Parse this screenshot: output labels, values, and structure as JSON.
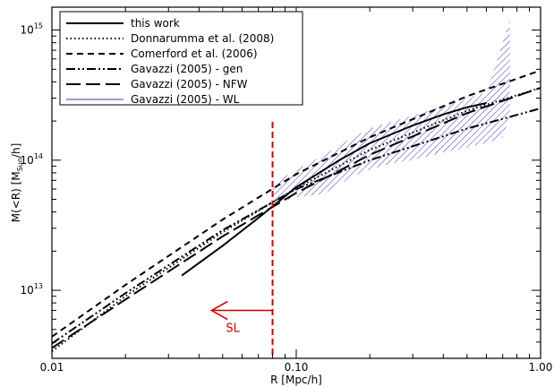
{
  "chart_data": {
    "type": "line",
    "xlabel": "R [Mpc/h]",
    "ylabel_prefix": "M(<R) [M",
    "ylabel_sub": "Sun",
    "ylabel_suffix": "/h]",
    "xscale": "log",
    "yscale": "log",
    "xlim": [
      0.01,
      1.0
    ],
    "ylim": [
      3000000000000.0,
      1500000000000000.0
    ],
    "x_ticks": [
      {
        "value": 0.01,
        "label": "0.01"
      },
      {
        "value": 0.1,
        "label": "0.10"
      },
      {
        "value": 1.0,
        "label": "1.00"
      }
    ],
    "y_ticks": [
      {
        "value": 10000000000000.0,
        "base": "10",
        "exp": "13"
      },
      {
        "value": 100000000000000.0,
        "base": "10",
        "exp": "14"
      },
      {
        "value": 1000000000000000.0,
        "base": "10",
        "exp": "15"
      }
    ],
    "legend_position": "top-left",
    "series": [
      {
        "name": "this work",
        "dash": "solid",
        "color": "#000000",
        "x": [
          0.034,
          0.05,
          0.07,
          0.1,
          0.15,
          0.2,
          0.3,
          0.4,
          0.5,
          0.6
        ],
        "y": [
          13000000000000.0,
          22000000000000.0,
          36000000000000.0,
          62000000000000.0,
          100000000000000.0,
          135000000000000.0,
          185000000000000.0,
          225000000000000.0,
          255000000000000.0,
          275000000000000.0
        ]
      },
      {
        "name": "Donnarumma et al. (2008)",
        "dash": "dotted",
        "color": "#000000",
        "x": [
          0.01,
          0.02,
          0.05,
          0.1,
          0.2,
          0.5,
          1.0
        ],
        "y": [
          3400000000000.0,
          9000000000000.0,
          28000000000000.0,
          61000000000000.0,
          120000000000000.0,
          240000000000000.0,
          360000000000000.0
        ]
      },
      {
        "name": "Comerford et al. (2006)",
        "dash": "dashed",
        "color": "#000000",
        "x": [
          0.01,
          0.02,
          0.05,
          0.1,
          0.2,
          0.5,
          1.0
        ],
        "y": [
          4400000000000.0,
          11000000000000.0,
          35000000000000.0,
          78000000000000.0,
          150000000000000.0,
          310000000000000.0,
          490000000000000.0
        ]
      },
      {
        "name": "Gavazzi (2005) - gen",
        "dash": "dashdotdot",
        "color": "#000000",
        "x": [
          0.01,
          0.02,
          0.05,
          0.1,
          0.2,
          0.5,
          1.0
        ],
        "y": [
          3900000000000.0,
          9500000000000.0,
          29000000000000.0,
          60000000000000.0,
          100000000000000.0,
          175000000000000.0,
          250000000000000.0
        ]
      },
      {
        "name": "Gavazzi (2005) - NFW",
        "dash": "longdash",
        "color": "#000000",
        "x": [
          0.01,
          0.02,
          0.05,
          0.1,
          0.2,
          0.5,
          1.0
        ],
        "y": [
          3600000000000.0,
          8500000000000.0,
          26000000000000.0,
          56000000000000.0,
          110000000000000.0,
          230000000000000.0,
          360000000000000.0
        ]
      },
      {
        "name": "Gavazzi (2005) - WL",
        "dash": "hatch",
        "color": "#3b3bb5",
        "band_x": [
          0.08,
          0.1,
          0.13,
          0.17,
          0.2,
          0.25,
          0.3,
          0.4,
          0.5,
          0.6,
          0.7,
          0.75
        ],
        "band_upper": [
          65000000000000.0,
          85000000000000.0,
          110000000000000.0,
          150000000000000.0,
          175000000000000.0,
          200000000000000.0,
          220000000000000.0,
          260000000000000.0,
          300000000000000.0,
          330000000000000.0,
          800000000000000.0,
          1200000000000000.0
        ],
        "band_lower": [
          45000000000000.0,
          52000000000000.0,
          55000000000000.0,
          75000000000000.0,
          85000000000000.0,
          95000000000000.0,
          100000000000000.0,
          115000000000000.0,
          125000000000000.0,
          135000000000000.0,
          150000000000000.0,
          220000000000000.0
        ]
      }
    ],
    "annotations": [
      {
        "type": "vline",
        "x": 0.08,
        "style": "dashed",
        "color": "#cc0000"
      },
      {
        "type": "arrow",
        "label": "SL",
        "direction": "left",
        "color": "#cc0000",
        "x_from": 0.08,
        "x_to": 0.045,
        "y": 7000000000000.0,
        "label_x": 0.055,
        "label_y": 5200000000000.0
      }
    ]
  }
}
